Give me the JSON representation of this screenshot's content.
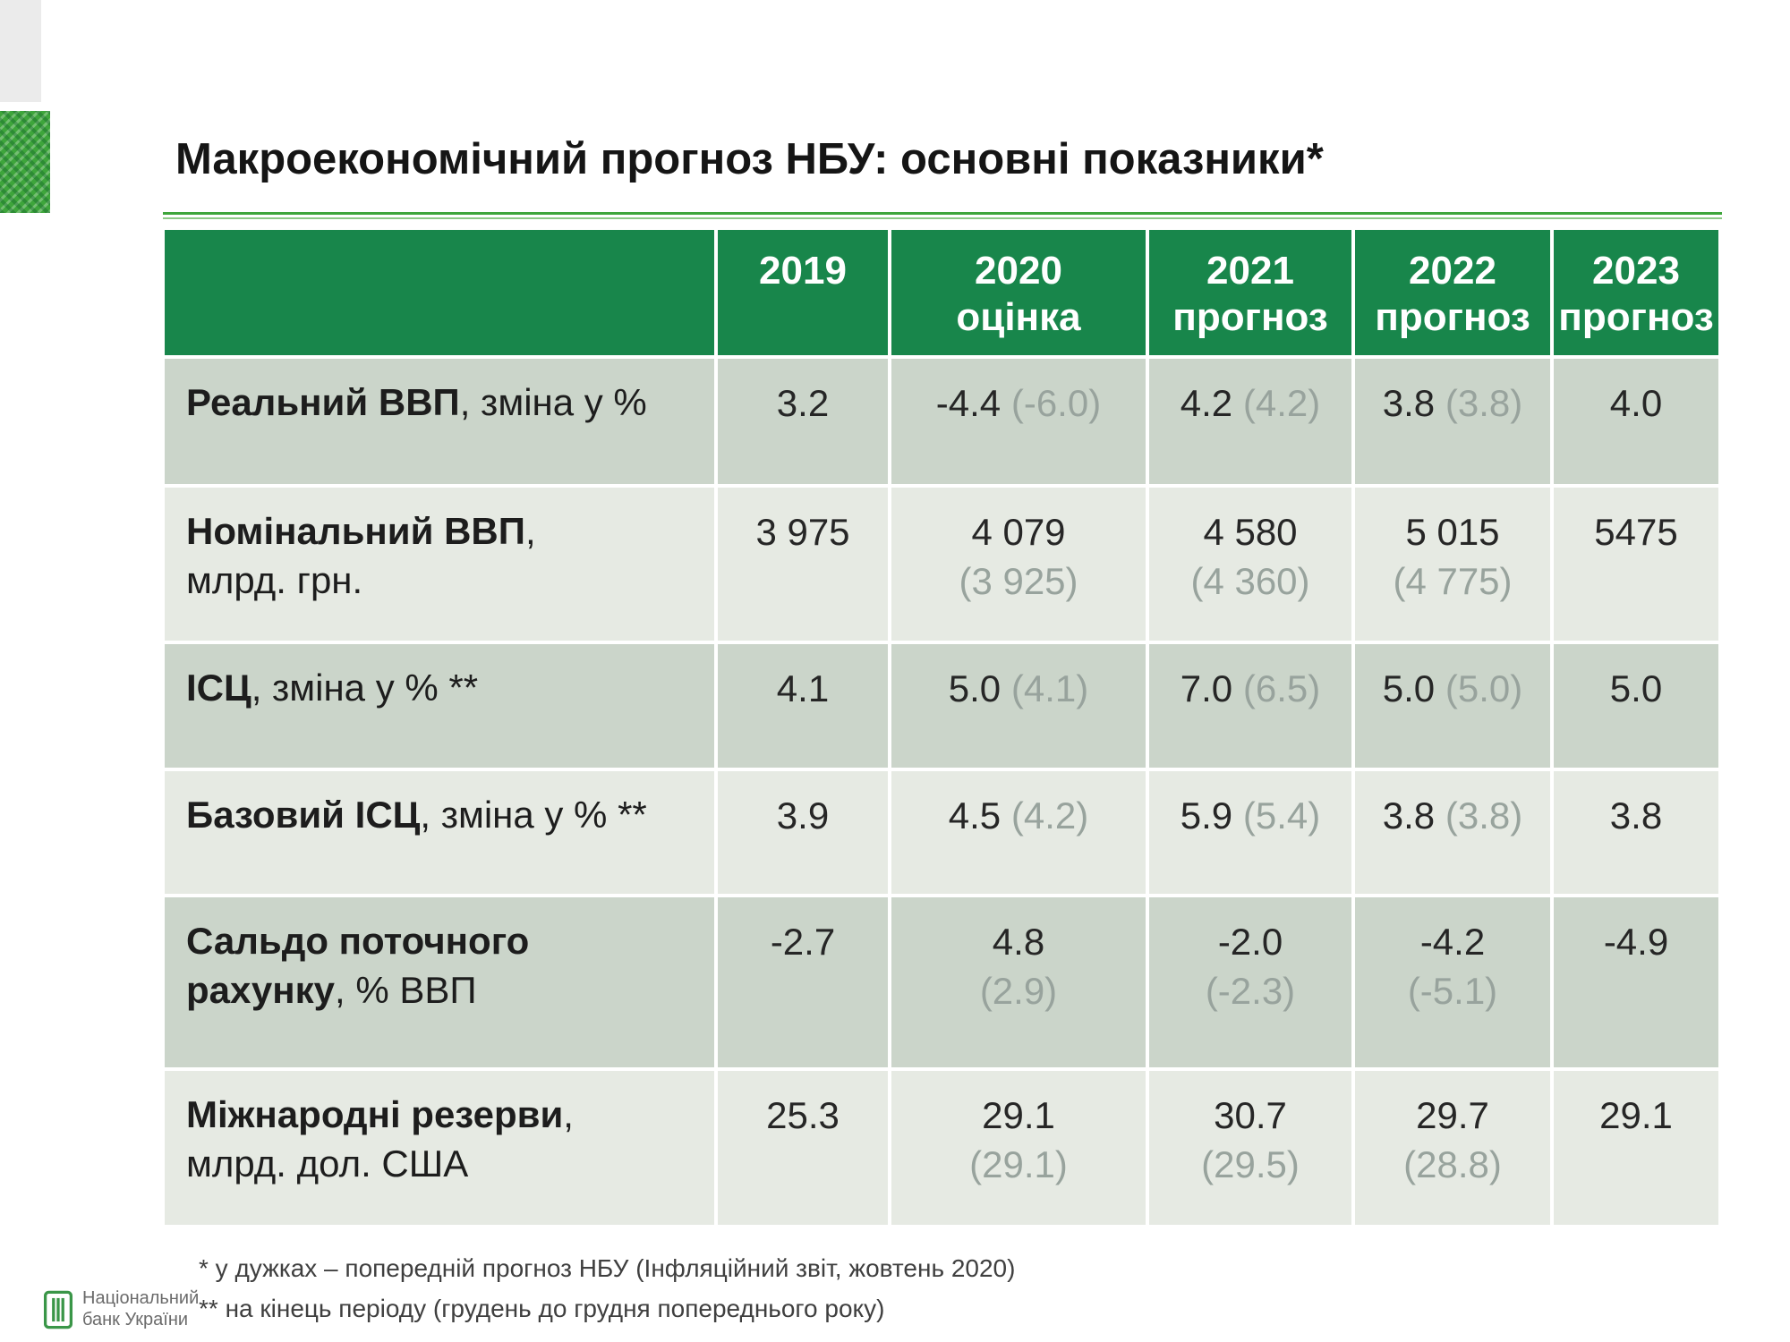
{
  "slide": {
    "title": "Макроекономічний прогноз НБУ: основні показники*",
    "footnote1": "* у дужках – попередній прогноз НБУ (Інфляційний звіт, жовтень 2020)",
    "footnote2": "** на кінець періоду (грудень до грудня попереднього року)",
    "logo_line1": "Національний",
    "logo_line2": "банк України"
  },
  "colors": {
    "header_green": "#18864b",
    "row_dark": "#cbd5ca",
    "row_light": "#e6eae3",
    "paren_gray": "#98a39d",
    "accent_green": "#3ea53b"
  },
  "table": {
    "columns": [
      {
        "year": "",
        "sub": ""
      },
      {
        "year": "2019",
        "sub": ""
      },
      {
        "year": "2020",
        "sub": "оцінка"
      },
      {
        "year": "2021",
        "sub": "прогноз"
      },
      {
        "year": "2022",
        "sub": "прогноз"
      },
      {
        "year": "2023",
        "sub": "прогноз"
      }
    ],
    "rows": [
      {
        "label": [
          [
            {
              "t": "Реальний ВВП",
              "b": 1
            },
            {
              "t": ", зміна у %",
              "b": 0
            }
          ]
        ],
        "cells": [
          {
            "v": "3.2",
            "p": "",
            "stack": 0
          },
          {
            "v": "-4.4",
            "p": "(-6.0)",
            "stack": 0
          },
          {
            "v": "4.2",
            "p": "(4.2)",
            "stack": 0
          },
          {
            "v": "3.8",
            "p": "(3.8)",
            "stack": 0
          },
          {
            "v": "4.0",
            "p": "",
            "stack": 0
          }
        ]
      },
      {
        "label": [
          [
            {
              "t": "Номінальний ВВП",
              "b": 1
            },
            {
              "t": ",",
              "b": 0
            }
          ],
          [
            {
              "t": "млрд. грн.",
              "b": 0
            }
          ]
        ],
        "cells": [
          {
            "v": "3 975",
            "p": "",
            "stack": 0
          },
          {
            "v": "4 079",
            "p": "(3 925)",
            "stack": 1
          },
          {
            "v": "4 580",
            "p": "(4 360)",
            "stack": 1
          },
          {
            "v": "5 015",
            "p": "(4 775)",
            "stack": 1
          },
          {
            "v": "5475",
            "p": "",
            "stack": 0
          }
        ]
      },
      {
        "label": [
          [
            {
              "t": "ІСЦ",
              "b": 1
            },
            {
              "t": ", зміна у % **",
              "b": 0
            }
          ]
        ],
        "cells": [
          {
            "v": "4.1",
            "p": "",
            "stack": 0
          },
          {
            "v": "5.0",
            "p": "(4.1)",
            "stack": 0
          },
          {
            "v": "7.0",
            "p": "(6.5)",
            "stack": 0
          },
          {
            "v": "5.0",
            "p": "(5.0)",
            "stack": 0
          },
          {
            "v": "5.0",
            "p": "",
            "stack": 0
          }
        ]
      },
      {
        "label": [
          [
            {
              "t": "Базовий ІСЦ",
              "b": 1
            },
            {
              "t": ", зміна у % **",
              "b": 0
            }
          ]
        ],
        "cells": [
          {
            "v": "3.9",
            "p": "",
            "stack": 0
          },
          {
            "v": "4.5",
            "p": "(4.2)",
            "stack": 0
          },
          {
            "v": "5.9",
            "p": "(5.4)",
            "stack": 0
          },
          {
            "v": "3.8",
            "p": "(3.8)",
            "stack": 0
          },
          {
            "v": "3.8",
            "p": "",
            "stack": 0
          }
        ]
      },
      {
        "label": [
          [
            {
              "t": "Сальдо поточного",
              "b": 1
            }
          ],
          [
            {
              "t": "рахунку",
              "b": 1
            },
            {
              "t": ", % ВВП",
              "b": 0
            }
          ]
        ],
        "cells": [
          {
            "v": "-2.7",
            "p": "",
            "stack": 0
          },
          {
            "v": "4.8",
            "p": "(2.9)",
            "stack": 1
          },
          {
            "v": "-2.0",
            "p": "(-2.3)",
            "stack": 1
          },
          {
            "v": "-4.2",
            "p": "(-5.1)",
            "stack": 1
          },
          {
            "v": "-4.9",
            "p": "",
            "stack": 0
          }
        ]
      },
      {
        "label": [
          [
            {
              "t": "Міжнародні резерви",
              "b": 1
            },
            {
              "t": ",",
              "b": 0
            }
          ],
          [
            {
              "t": "млрд. дол. США",
              "b": 0
            }
          ]
        ],
        "cells": [
          {
            "v": "25.3",
            "p": "",
            "stack": 0
          },
          {
            "v": "29.1",
            "p": "(29.1)",
            "stack": 1
          },
          {
            "v": "30.7",
            "p": "(29.5)",
            "stack": 1
          },
          {
            "v": "29.7",
            "p": "(28.8)",
            "stack": 1
          },
          {
            "v": "29.1",
            "p": "",
            "stack": 0
          }
        ]
      }
    ]
  }
}
